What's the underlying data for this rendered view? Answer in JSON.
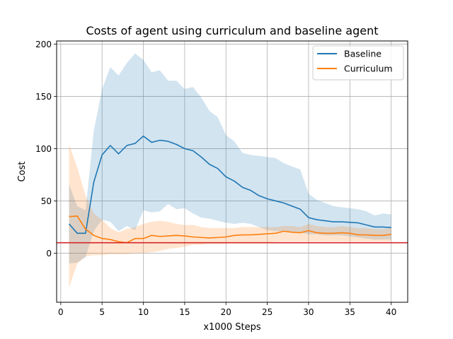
{
  "chart_data": {
    "type": "line",
    "title": "Costs of agent using curriculum and baseline agent",
    "xlabel": "x1000 Steps",
    "ylabel": "Cost",
    "xlim": [
      -0.5,
      42
    ],
    "ylim": [
      -47,
      203
    ],
    "xticks": [
      0,
      5,
      10,
      15,
      20,
      25,
      30,
      35,
      40
    ],
    "yticks": [
      0,
      50,
      100,
      150,
      200
    ],
    "grid": true,
    "legend": "top-right",
    "reference_line": {
      "y": 10,
      "color": "#d62728"
    },
    "series": [
      {
        "name": "Baseline",
        "color": "#1f77b4",
        "band_color": "#1f77b4",
        "x": [
          1,
          2,
          3,
          4,
          5,
          6,
          7,
          8,
          9,
          10,
          11,
          12,
          13,
          14,
          15,
          16,
          17,
          18,
          19,
          20,
          21,
          22,
          23,
          24,
          25,
          26,
          27,
          28,
          29,
          30,
          31,
          32,
          33,
          34,
          35,
          36,
          37,
          38,
          39,
          40
        ],
        "y": [
          28,
          19,
          19,
          68,
          94,
          103,
          95,
          103,
          105,
          112,
          106,
          108,
          107,
          104,
          100,
          98,
          92,
          85,
          81,
          73,
          69,
          63,
          60,
          55,
          52,
          50,
          48,
          45,
          42,
          34,
          32,
          31,
          30,
          30,
          29.5,
          29,
          27,
          25,
          25,
          24.5
        ],
        "lower": [
          -10,
          -9,
          -4,
          21,
          32,
          30,
          21,
          26,
          22,
          41,
          39,
          40,
          47,
          42,
          43,
          38,
          34,
          33,
          31,
          29,
          28,
          29,
          28,
          25,
          22,
          21,
          21,
          20,
          20,
          18,
          18,
          17,
          17,
          17,
          16,
          15,
          14,
          13,
          13,
          13
        ],
        "upper": [
          66,
          45,
          41,
          117,
          157,
          178,
          170,
          182,
          191,
          185,
          173,
          175,
          165,
          165,
          157,
          159,
          149,
          136,
          130,
          113,
          107,
          96,
          94,
          93,
          92,
          91,
          86,
          83,
          80,
          57,
          51,
          48,
          45,
          44,
          43,
          42,
          40,
          36,
          38,
          37
        ]
      },
      {
        "name": "Curriculum",
        "color": "#ff7f0e",
        "band_color": "#ff7f0e",
        "x": [
          1,
          2,
          3,
          4,
          5,
          6,
          7,
          8,
          9,
          10,
          11,
          12,
          13,
          14,
          15,
          16,
          17,
          18,
          19,
          20,
          21,
          22,
          23,
          24,
          25,
          26,
          27,
          28,
          29,
          30,
          31,
          32,
          33,
          34,
          35,
          36,
          37,
          38,
          39,
          40
        ],
        "y": [
          35,
          35.5,
          23,
          17,
          14,
          13,
          11,
          10,
          14,
          14,
          17,
          16,
          16.5,
          17,
          16.5,
          15.5,
          15,
          14.5,
          15,
          15.5,
          17,
          17.5,
          17.5,
          18,
          18.5,
          19,
          21,
          20,
          19.5,
          21.5,
          19.5,
          19,
          19,
          19.5,
          19,
          17.5,
          17.5,
          17,
          17,
          18
        ],
        "lower": [
          -33,
          -10,
          -3,
          -2,
          -2,
          -1,
          -1,
          -1,
          0,
          0,
          1,
          2,
          4,
          5,
          6,
          8,
          8,
          9,
          9,
          9,
          10,
          10,
          10,
          10,
          10,
          11,
          11,
          11,
          11,
          11,
          11,
          11,
          11,
          11,
          11,
          11,
          11,
          11,
          11,
          11
        ],
        "upper": [
          104,
          82,
          55,
          38,
          32,
          24,
          20,
          23,
          25,
          28,
          30,
          31,
          30,
          28,
          27,
          27,
          25,
          24,
          24,
          24,
          24,
          25,
          25,
          25,
          25,
          25,
          26,
          26,
          25,
          28,
          26,
          25,
          25,
          26,
          25,
          24,
          24,
          23,
          23,
          24
        ]
      }
    ]
  }
}
